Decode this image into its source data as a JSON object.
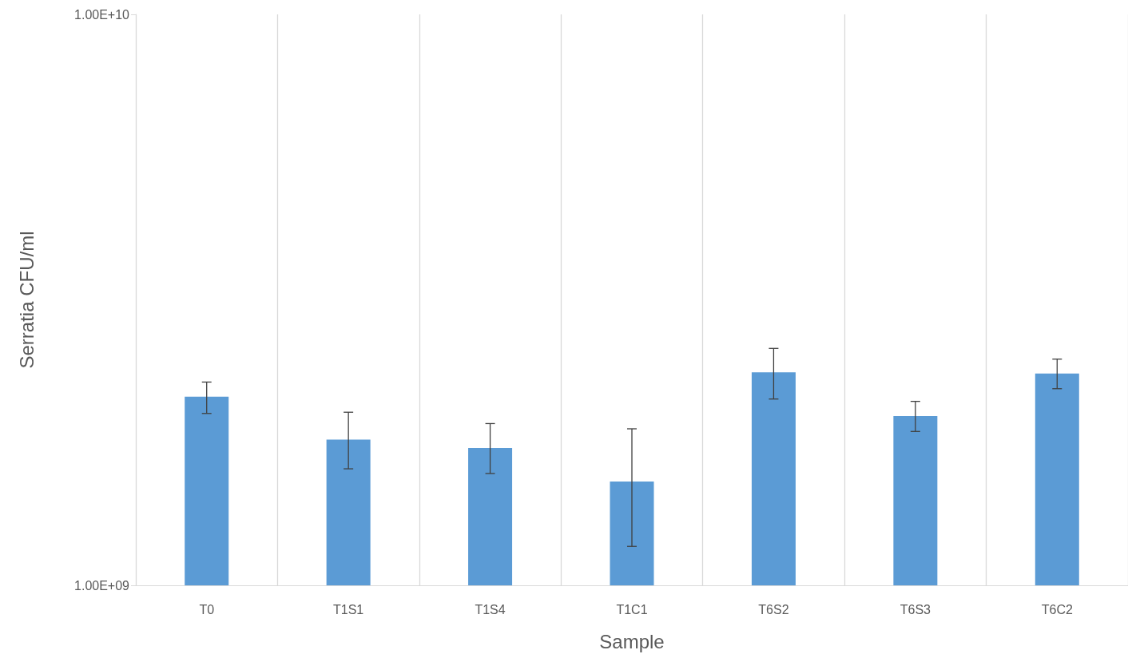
{
  "chart_data": {
    "type": "bar",
    "xlabel": "Sample",
    "ylabel": "Serratia CFU/ml",
    "categories": [
      "T0",
      "T1S1",
      "T1S4",
      "T1C1",
      "T6S2",
      "T6S3",
      "T6C2"
    ],
    "values": [
      2140000000,
      1800000000,
      1740000000,
      1520000000,
      2360000000,
      1980000000,
      2350000000
    ],
    "errors": [
      [
        2000000000,
        2270000000
      ],
      [
        1600000000,
        2010000000
      ],
      [
        1570000000,
        1920000000
      ],
      [
        1170000000,
        1880000000
      ],
      [
        2120000000,
        2600000000
      ],
      [
        1860000000,
        2100000000
      ],
      [
        2210000000,
        2490000000
      ]
    ],
    "color": "#5b9bd5",
    "log": "y",
    "ylim": [
      1000000000,
      10000000000
    ],
    "yticks": [
      {
        "value": 1000000000,
        "label": "1.00E+09"
      },
      {
        "value": 10000000000,
        "label": "1.00E+10"
      }
    ],
    "grid": "x"
  }
}
